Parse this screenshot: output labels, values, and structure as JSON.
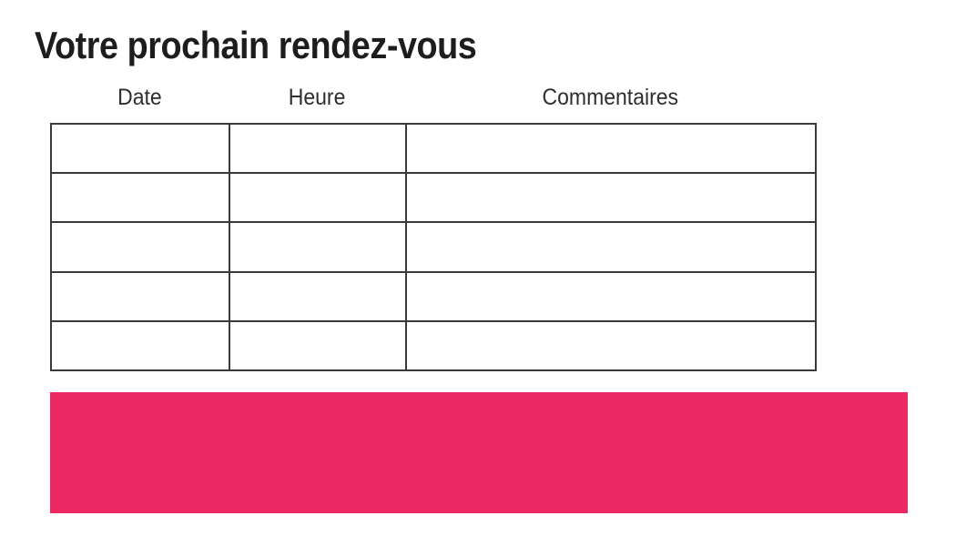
{
  "page": {
    "title": "Votre prochain rendez-vous"
  },
  "table": {
    "columns": [
      {
        "label": "Date"
      },
      {
        "label": "Heure"
      },
      {
        "label": "Commentaires"
      }
    ],
    "row_count": 5,
    "rows": [
      [
        "",
        "",
        ""
      ],
      [
        "",
        "",
        ""
      ],
      [
        "",
        "",
        ""
      ],
      [
        "",
        "",
        ""
      ],
      [
        "",
        "",
        ""
      ]
    ]
  },
  "banner": {
    "text": "",
    "color": "#ED2964"
  },
  "colors": {
    "background": "#FFFFFF",
    "title_text": "#1D1D1B",
    "header_text": "#2E2E2E",
    "table_border": "#3A3A3A",
    "accent_pink": "#ED2964"
  }
}
